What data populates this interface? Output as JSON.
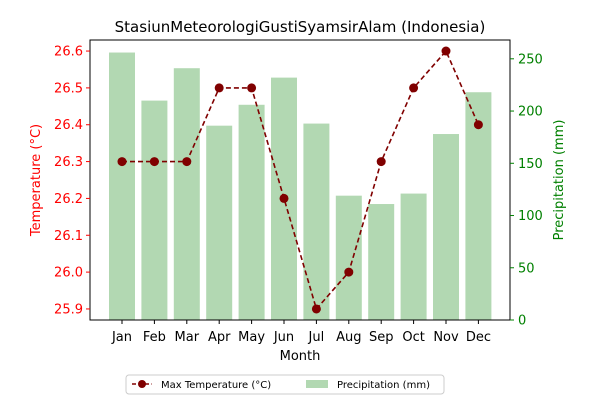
{
  "chart_data": {
    "type": "bar+line",
    "title": "StasiunMeteorologiGustiSyamsirAlam (Indonesia)",
    "xlabel": "Month",
    "ylabel_left": "Temperature (°C)",
    "ylabel_right": "Precipitation (mm)",
    "categories": [
      "Jan",
      "Feb",
      "Mar",
      "Apr",
      "May",
      "Jun",
      "Jul",
      "Aug",
      "Sep",
      "Oct",
      "Nov",
      "Dec"
    ],
    "ylim_left": [
      25.87,
      26.63
    ],
    "ylim_right": [
      0,
      268
    ],
    "yticks_left": [
      "25.9",
      "26.0",
      "26.1",
      "26.2",
      "26.3",
      "26.4",
      "26.5",
      "26.6"
    ],
    "yticks_right": [
      "0",
      "50",
      "100",
      "150",
      "200",
      "250"
    ],
    "series": [
      {
        "name": "Max Temperature (°C)",
        "type": "line",
        "axis": "left",
        "color": "#800000",
        "values": [
          26.3,
          26.3,
          26.3,
          26.5,
          26.5,
          26.2,
          25.9,
          26.0,
          26.3,
          26.5,
          26.6,
          26.4
        ]
      },
      {
        "name": "Precipitation (mm)",
        "type": "bar",
        "axis": "right",
        "color": "#b2d8b2",
        "values": [
          256,
          210,
          241,
          186,
          206,
          232,
          188,
          119,
          111,
          121,
          178,
          218
        ]
      }
    ],
    "legend_position": "bottom-center",
    "left_axis_color": "#ff0000",
    "right_axis_color": "#008000",
    "grid": false
  }
}
